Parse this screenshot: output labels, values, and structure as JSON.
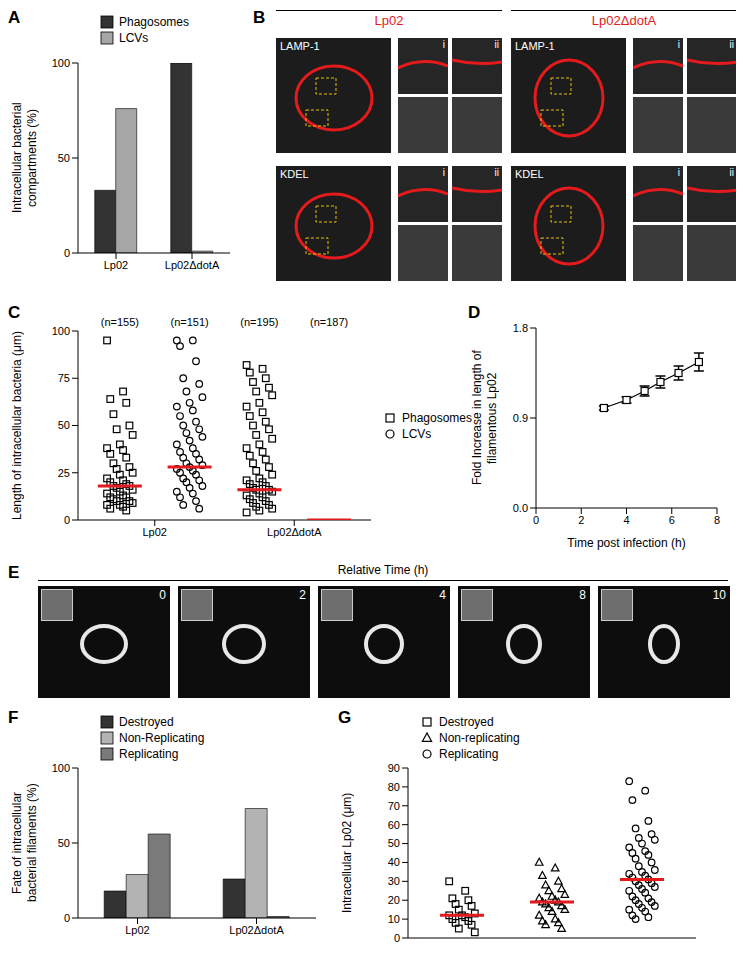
{
  "chart_data": [
    {
      "panel": "A",
      "type": "bar",
      "y_label": "Intracellular bacterial compartments (%)",
      "categories": [
        "Lp02",
        "Lp02ΔdotA"
      ],
      "series": [
        {
          "name": "Phagosomes",
          "color": "#333333",
          "values": [
            33,
            100
          ]
        },
        {
          "name": "LCVs",
          "color": "#a6a6a6",
          "values": [
            76,
            1
          ]
        }
      ],
      "ylim": [
        0,
        100
      ],
      "yticks": [
        0,
        50,
        100
      ],
      "legend": "top"
    },
    {
      "panel": "C",
      "type": "dot_plot",
      "y_label": "Length of intracellular bacteria (μm)",
      "categories": [
        "Lp02",
        "Lp02ΔdotA"
      ],
      "series": [
        {
          "name": "Phagosomes",
          "marker": "square",
          "color": "#000000"
        },
        {
          "name": "LCVs",
          "marker": "circle",
          "color": "#000000"
        }
      ],
      "groups": [
        {
          "category": "Lp02",
          "series": "Phagosomes",
          "annotation": "(n=155)",
          "median": 18,
          "values": [
            95,
            68,
            64,
            62,
            56,
            50,
            48,
            45,
            40,
            38,
            37,
            35,
            33,
            30,
            28,
            27,
            25,
            24,
            22,
            21,
            20,
            19,
            18,
            18,
            17,
            16,
            15,
            14,
            13,
            12,
            12,
            11,
            10,
            10,
            9,
            8,
            8,
            7,
            6,
            5
          ]
        },
        {
          "category": "Lp02",
          "series": "LCVs",
          "annotation": "(n=151)",
          "median": 28,
          "values": [
            95,
            95,
            92,
            84,
            75,
            72,
            68,
            65,
            62,
            60,
            58,
            55,
            52,
            50,
            48,
            46,
            44,
            42,
            40,
            38,
            36,
            35,
            33,
            32,
            30,
            29,
            28,
            27,
            26,
            25,
            24,
            22,
            21,
            20,
            18,
            17,
            15,
            14,
            12,
            10,
            8,
            6
          ]
        },
        {
          "category": "Lp02ΔdotA",
          "series": "Phagosomes",
          "annotation": "(n=195)",
          "median": 16,
          "values": [
            82,
            80,
            78,
            75,
            73,
            70,
            68,
            66,
            62,
            60,
            57,
            55,
            52,
            50,
            48,
            45,
            43,
            40,
            38,
            36,
            34,
            32,
            30,
            28,
            26,
            24,
            22,
            21,
            20,
            19,
            18,
            17,
            16,
            16,
            15,
            14,
            13,
            12,
            11,
            10,
            9,
            8,
            7,
            6,
            5,
            4
          ]
        },
        {
          "category": "Lp02ΔdotA",
          "series": "LCVs",
          "annotation": "(n=187)",
          "median": 0,
          "values": []
        }
      ],
      "ylim": [
        0,
        100
      ],
      "yticks": [
        0,
        25,
        50,
        75,
        100
      ],
      "legend": "right"
    },
    {
      "panel": "D",
      "type": "line",
      "x_label": "Time post infection (h)",
      "y_label": "Fold Increase in length of filamentous Lp02",
      "x": [
        3,
        4,
        4.8,
        5.5,
        6.3,
        7.2
      ],
      "values": [
        1.0,
        1.08,
        1.17,
        1.26,
        1.35,
        1.46
      ],
      "errors": [
        0.02,
        0.03,
        0.05,
        0.06,
        0.07,
        0.09
      ],
      "color": "#000000",
      "marker": "square",
      "xlim": [
        0,
        8
      ],
      "xticks": [
        0,
        2,
        4,
        6,
        8
      ],
      "ylim": [
        0,
        1.8
      ],
      "yticks": [
        {
          "value": 0,
          "label": "0.0"
        },
        0.9,
        1.8
      ]
    },
    {
      "panel": "F",
      "type": "bar",
      "y_label": "Fate of intracellular bacterial filaments (%)",
      "categories": [
        "Lp02",
        "Lp02ΔdotA"
      ],
      "series": [
        {
          "name": "Destroyed",
          "color": "#333333",
          "values": [
            18,
            26
          ]
        },
        {
          "name": "Non-Replicating",
          "color": "#b3b3b3",
          "values": [
            29,
            73
          ]
        },
        {
          "name": "Replicating",
          "color": "#7a7a7a",
          "values": [
            56,
            1
          ]
        }
      ],
      "ylim": [
        0,
        100
      ],
      "yticks": [
        0,
        50,
        100
      ],
      "legend": "top"
    },
    {
      "panel": "G",
      "type": "dot_plot",
      "y_label": "Intracellular Lp02 (μm)",
      "series": [
        {
          "name": "Destroyed",
          "marker": "square",
          "color": "#000000"
        },
        {
          "name": "Non-replicating",
          "marker": "triangle",
          "color": "#000000"
        },
        {
          "name": "Replicating",
          "marker": "circle",
          "color": "#000000"
        }
      ],
      "groups": [
        {
          "series": "Destroyed",
          "median": 12,
          "values": [
            30,
            25,
            21,
            20,
            18,
            17,
            15,
            13,
            12,
            12,
            11,
            10,
            9,
            8,
            7,
            5,
            3
          ]
        },
        {
          "series": "Non-replicating",
          "median": 19,
          "values": [
            40,
            37,
            33,
            30,
            28,
            26,
            25,
            23,
            22,
            21,
            20,
            19,
            19,
            18,
            17,
            16,
            15,
            14,
            12,
            10,
            9,
            8,
            7,
            5
          ]
        },
        {
          "series": "Replicating",
          "median": 31,
          "values": [
            83,
            78,
            73,
            62,
            58,
            55,
            53,
            52,
            50,
            48,
            46,
            45,
            44,
            42,
            40,
            38,
            36,
            35,
            34,
            33,
            32,
            31,
            30,
            29,
            28,
            27,
            26,
            25,
            24,
            22,
            21,
            20,
            19,
            18,
            17,
            16,
            15,
            14,
            12,
            11,
            10
          ]
        }
      ],
      "ylim": [
        0,
        90
      ],
      "yticks": [
        0,
        10,
        20,
        30,
        40,
        50,
        60,
        70,
        80,
        90
      ],
      "tick_labels": "y",
      "legend": "top"
    }
  ],
  "images": [
    {
      "panel": "B",
      "columns": [
        {
          "title": "Lp02",
          "color": "#e41a1c"
        },
        {
          "title": "Lp02ΔdotA",
          "color": "#e41a1c"
        }
      ],
      "rows": [
        "LAMP-1",
        "KDEL"
      ],
      "insets": [
        "i",
        "ii"
      ]
    },
    {
      "panel": "E",
      "title": "Relative Time (h)",
      "frames": [
        0,
        2,
        4,
        8,
        10
      ]
    }
  ]
}
